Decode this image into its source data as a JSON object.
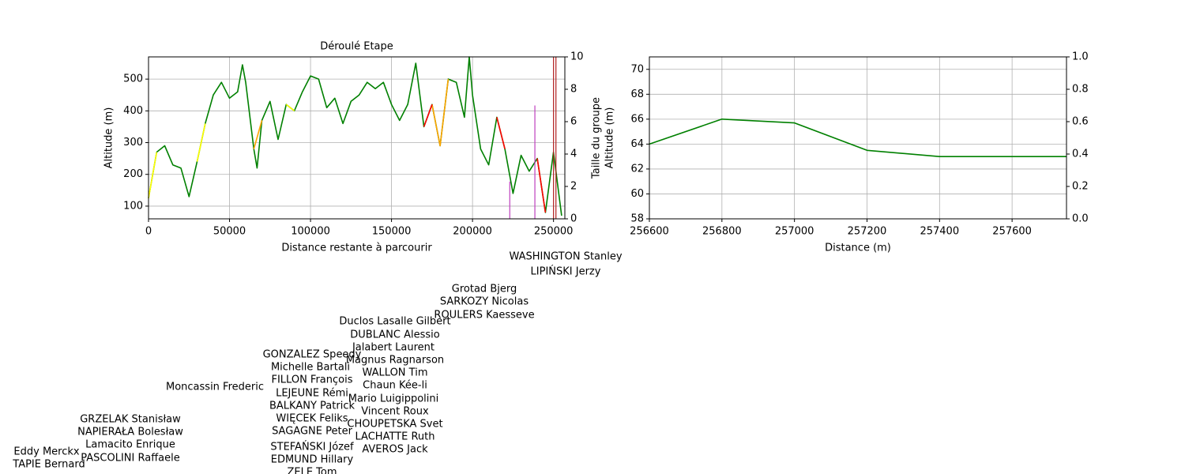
{
  "chart_data": [
    {
      "type": "line",
      "title": "Déroulé Etape",
      "xlabel": "Distance restante à parcourir",
      "ylabel": "Altitude (m)",
      "y2label": "Taille du groupe",
      "xlim": [
        0,
        257000
      ],
      "ylim": [
        60,
        570
      ],
      "y2lim": [
        0,
        10
      ],
      "xticks": [
        0,
        50000,
        100000,
        150000,
        200000,
        250000
      ],
      "yticks": [
        100,
        200,
        300,
        400,
        500
      ],
      "y2ticks": [
        0,
        2,
        4,
        6,
        8,
        10
      ],
      "grid": true,
      "x": [
        0,
        5000,
        10000,
        15000,
        20000,
        25000,
        30000,
        35000,
        40000,
        45000,
        50000,
        55000,
        58000,
        60000,
        65000,
        67000,
        70000,
        75000,
        80000,
        85000,
        90000,
        95000,
        100000,
        105000,
        110000,
        115000,
        120000,
        125000,
        130000,
        135000,
        140000,
        145000,
        150000,
        155000,
        160000,
        165000,
        170000,
        175000,
        180000,
        185000,
        190000,
        195000,
        198000,
        200000,
        205000,
        210000,
        215000,
        220000,
        225000,
        230000,
        235000,
        240000,
        245000,
        250000,
        255000
      ],
      "series": [
        {
          "color": "#008000",
          "values": [
            125,
            270,
            290,
            230,
            220,
            130,
            240,
            360,
            450,
            490,
            440,
            460,
            545,
            490,
            280,
            220,
            370,
            430,
            310,
            420,
            400,
            460,
            510,
            500,
            410,
            440,
            360,
            430,
            450,
            490,
            470,
            490,
            420,
            370,
            420,
            550,
            350,
            420,
            290,
            500,
            490,
            380,
            570,
            450,
            280,
            230,
            380,
            280,
            140,
            260,
            210,
            250,
            80,
            270,
            70
          ]
        },
        {
          "color": "#ffff00",
          "x": [
            0,
            5000
          ],
          "values": [
            125,
            270
          ]
        },
        {
          "color": "#ffff00",
          "x": [
            30000,
            35000
          ],
          "values": [
            240,
            360
          ]
        },
        {
          "color": "#ffff00",
          "x": [
            85000,
            90000
          ],
          "values": [
            420,
            400
          ]
        },
        {
          "color": "#ffa500",
          "x": [
            65000,
            70000
          ],
          "values": [
            280,
            370
          ]
        },
        {
          "color": "#ffa500",
          "x": [
            175000,
            180000,
            185000
          ],
          "values": [
            420,
            290,
            500
          ]
        },
        {
          "color": "#ff0000",
          "x": [
            170000,
            175000
          ],
          "values": [
            350,
            420
          ]
        },
        {
          "color": "#ff0000",
          "x": [
            215000,
            220000
          ],
          "values": [
            380,
            280
          ]
        },
        {
          "color": "#ff0000",
          "x": [
            240000,
            245000
          ],
          "values": [
            250,
            80
          ]
        },
        {
          "color": "#bf40bf",
          "axis": "y2",
          "x": [
            223000,
            238500
          ],
          "values": [
            2.3,
            7
          ]
        },
        {
          "color": "#b22222",
          "axis": "y2",
          "x": [
            250000,
            251500
          ],
          "values": [
            10,
            10
          ]
        }
      ]
    },
    {
      "type": "line",
      "xlabel": "Distance (m)",
      "ylabel": "Altitude (m)",
      "xlim": [
        256600,
        257750
      ],
      "ylim": [
        58,
        71
      ],
      "y2lim": [
        0,
        1
      ],
      "xticks": [
        256600,
        256800,
        257000,
        257200,
        257400,
        257600
      ],
      "yticks": [
        58,
        60,
        62,
        64,
        66,
        68,
        70
      ],
      "y2ticks": [
        {
          "value": 0,
          "label": "0.0"
        },
        0.2,
        0.4,
        0.6,
        0.8,
        {
          "value": 1,
          "label": "1.0"
        }
      ],
      "grid": true,
      "x": [
        256600,
        256800,
        257000,
        257200,
        257400,
        257750
      ],
      "series": [
        {
          "color": "#008000",
          "values": [
            64,
            66,
            65.7,
            63.5,
            63,
            63
          ]
        }
      ]
    }
  ],
  "annotations": [
    "WASHINGTON Stanley",
    "LIPIŃSKI Jerzy",
    "Grotad Bjerg",
    "SARKOZY Nicolas",
    "ROULERS Kaesseve",
    "Duclos Lasalle Gilbert",
    "DUBLANC Alessio",
    "Jalabert Laurent",
    "GONZALEZ Speedy",
    "Magnus Ragnarson",
    "Michelle Bartali",
    "WALLON Tim",
    "FILLON François",
    "Chaun Kée-li",
    "Moncassin Frederic",
    "LEJEUNE Rémi",
    "Mario Luigippolini",
    "BALKANY Patrick",
    "Vincent Roux",
    "WIĘCEK Feliks",
    "GRZELAK Stanisław",
    "CHOUPETSKA Svet",
    "SAGAGNE Peter",
    "NAPIERAŁA Bolesław",
    "LACHATTE Ruth",
    "Lamacito Enrique",
    "STEFAŃSKI Józef",
    "AVEROS Jack",
    "Eddy Merckx",
    "PASCOLINI Raffaele",
    "EDMUND Hillary",
    "TAPIE Bernard",
    "ZELE Tom"
  ]
}
